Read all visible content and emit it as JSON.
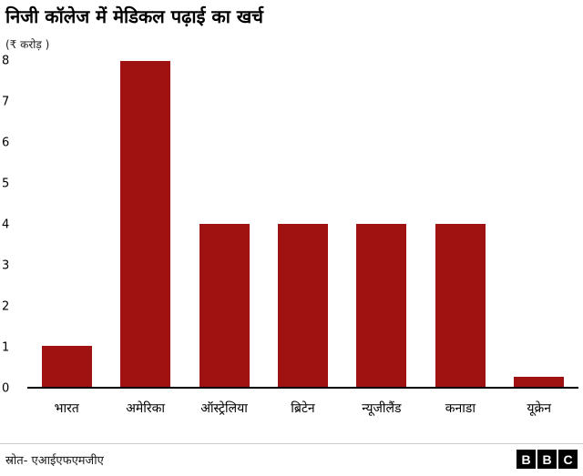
{
  "header": {
    "title": "निजी कॉलेज में मेडिकल पढ़ाई का खर्च",
    "unit_label": "(₹ करोड़ )"
  },
  "chart_data": {
    "type": "bar",
    "title": "निजी कॉलेज में मेडिकल पढ़ाई का खर्च",
    "subtitle": "(₹ करोड़ )",
    "categories": [
      "भारत",
      "अमेरिका",
      "ऑस्ट्रेलिया",
      "ब्रिटेन",
      "न्यूजीलैंड",
      "कनाडा",
      "यूक्रेन"
    ],
    "values": [
      1,
      8,
      4,
      4,
      4,
      4,
      0.25
    ],
    "xlabel": "",
    "ylabel": "₹ करोड़",
    "ylim": [
      0,
      8
    ],
    "yticks": [
      0,
      1,
      2,
      3,
      4,
      5,
      6,
      7,
      8
    ],
    "bar_color": "#a01212",
    "axis_color": "#000000",
    "grid": false,
    "legend": false
  },
  "footer": {
    "source": "स्रोत- एआईएफएमजीए",
    "logo_letters": [
      "B",
      "B",
      "C"
    ]
  }
}
